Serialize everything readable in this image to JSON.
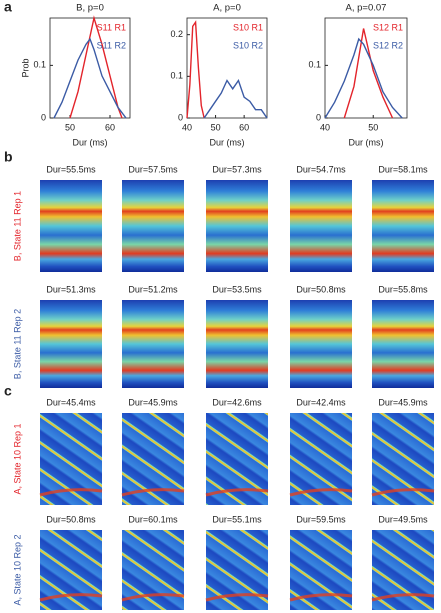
{
  "panel_labels": [
    "a",
    "b",
    "c"
  ],
  "chart_data": [
    {
      "type": "line",
      "title": "B, p=0",
      "xlabel": "Dur (ms)",
      "ylabel": "Prob",
      "xlim": [
        45,
        65
      ],
      "xticks": [
        50,
        60
      ],
      "ylim": [
        0,
        0.19
      ],
      "yticks": [
        0,
        0.1
      ],
      "series": [
        {
          "name": "S11 R1",
          "color": "#e3242b",
          "x": [
            50,
            52,
            54,
            56,
            58,
            60,
            62,
            63
          ],
          "values": [
            0,
            0.05,
            0.12,
            0.19,
            0.14,
            0.08,
            0.02,
            0
          ]
        },
        {
          "name": "S11 R2",
          "color": "#3b5ba5",
          "x": [
            46,
            48,
            50,
            52,
            54,
            55,
            56,
            58,
            60,
            62,
            64
          ],
          "values": [
            0,
            0.03,
            0.07,
            0.11,
            0.14,
            0.15,
            0.13,
            0.08,
            0.05,
            0.02,
            0
          ]
        }
      ]
    },
    {
      "type": "line",
      "title": "A, p=0",
      "xlabel": "Dur (ms)",
      "xlim": [
        40,
        68
      ],
      "xticks": [
        40,
        50,
        60
      ],
      "ylim": [
        0,
        0.24
      ],
      "yticks": [
        0,
        0.1,
        0.2
      ],
      "series": [
        {
          "name": "S10 R1",
          "color": "#e3242b",
          "x": [
            40,
            41,
            42,
            43,
            44,
            45,
            46
          ],
          "values": [
            0,
            0.08,
            0.22,
            0.23,
            0.12,
            0.03,
            0
          ]
        },
        {
          "name": "S10 R2",
          "color": "#3b5ba5",
          "x": [
            46,
            48,
            50,
            52,
            54,
            56,
            58,
            60,
            62,
            64,
            66,
            68
          ],
          "values": [
            0,
            0.02,
            0.04,
            0.06,
            0.09,
            0.07,
            0.09,
            0.05,
            0.04,
            0.02,
            0.02,
            0
          ]
        }
      ]
    },
    {
      "type": "line",
      "title": "A, p=0.07",
      "xlabel": "Dur (ms)",
      "xlim": [
        40,
        57
      ],
      "xticks": [
        40,
        50
      ],
      "ylim": [
        0,
        0.19
      ],
      "yticks": [
        0,
        0.1
      ],
      "series": [
        {
          "name": "S12 R1",
          "color": "#e3242b",
          "x": [
            44,
            46,
            48,
            50,
            52,
            54
          ],
          "values": [
            0,
            0.06,
            0.17,
            0.09,
            0.04,
            0
          ]
        },
        {
          "name": "S12 R2",
          "color": "#3b5ba5",
          "x": [
            40,
            42,
            44,
            46,
            47,
            48,
            50,
            52,
            54,
            56
          ],
          "values": [
            0,
            0.03,
            0.07,
            0.12,
            0.15,
            0.14,
            0.1,
            0.05,
            0.02,
            0
          ]
        }
      ]
    }
  ],
  "rows": [
    {
      "label": "B, State 11 Rep 1",
      "color": "#e3242b",
      "durations": [
        "Dur=55.5ms",
        "Dur=57.5ms",
        "Dur=57.3ms",
        "Dur=54.7ms",
        "Dur=58.1ms"
      ]
    },
    {
      "label": "B, State 11 Rep 2",
      "color": "#3b5ba5",
      "durations": [
        "Dur=51.3ms",
        "Dur=51.2ms",
        "Dur=53.5ms",
        "Dur=50.8ms",
        "Dur=55.8ms"
      ]
    },
    {
      "label": "A, State 10 Rep 1",
      "color": "#e3242b",
      "durations": [
        "Dur=45.4ms",
        "Dur=45.9ms",
        "Dur=42.6ms",
        "Dur=42.4ms",
        "Dur=45.9ms"
      ]
    },
    {
      "label": "A, State 10 Rep 2",
      "color": "#3b5ba5",
      "durations": [
        "Dur=50.8ms",
        "Dur=60.1ms",
        "Dur=55.1ms",
        "Dur=59.5ms",
        "Dur=49.5ms"
      ]
    }
  ]
}
